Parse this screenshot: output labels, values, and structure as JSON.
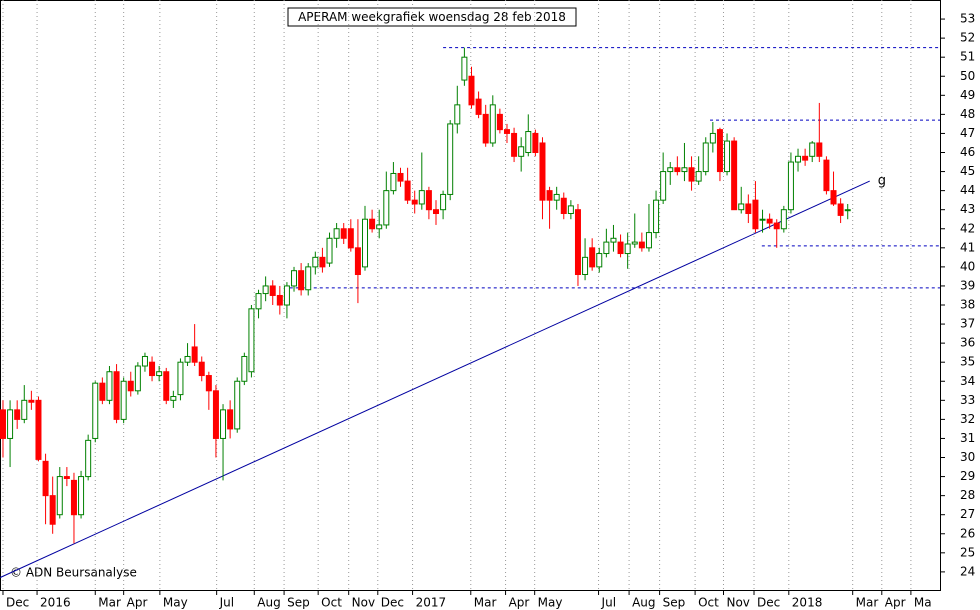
{
  "chart_data": {
    "type": "candlestick",
    "title": "APERAM weekgrafiek woensdag 28 feb 2018",
    "source": "© ADN Beursanalyse",
    "up_color": "#008000",
    "down_color": "#ff0000",
    "open": [
      32.5,
      31,
      32.5,
      32,
      33,
      33,
      29.8,
      28,
      27,
      29,
      28.8,
      27,
      29,
      31,
      33.9,
      33,
      34.5,
      32,
      34,
      33.5,
      34.8,
      35,
      34.3,
      34.5,
      33,
      33.3,
      35,
      35.8,
      35,
      34.3,
      33.5,
      31,
      32.5,
      31.5,
      34,
      34.5,
      37.8,
      38.6,
      39,
      38.5,
      38,
      39,
      39.8,
      38.8,
      40,
      40.5,
      40.2,
      41.5,
      42,
      42,
      41,
      40,
      42.5,
      42,
      42.2,
      44,
      44.9,
      44.5,
      43.5,
      43.3,
      44,
      43,
      43,
      43.8,
      47.5,
      49.8,
      50,
      48.8,
      48,
      46.5,
      48,
      47.2,
      47,
      45.8,
      46,
      47,
      46.5,
      44,
      43.5,
      43.6,
      42.8,
      43,
      39.6,
      41,
      40,
      40.7,
      41.3,
      41.3,
      40.7,
      41.2,
      41.3,
      41,
      41.8,
      43.5,
      45,
      45.2,
      45,
      45.2,
      44.5,
      45,
      46.5,
      47.2,
      45,
      46.6,
      43,
      43.3,
      43.5,
      42.5,
      42.5,
      42.3,
      42,
      43,
      45.5,
      45.8,
      45.8,
      46.5,
      45.6,
      44,
      43.3,
      43
    ],
    "high": [
      33,
      33,
      33,
      33.8,
      33.5,
      33.2,
      30.2,
      29,
      29.5,
      29.5,
      29.2,
      29.3,
      31.2,
      34,
      34.2,
      34.8,
      34.9,
      34.2,
      34.5,
      35,
      35.5,
      35.3,
      34.8,
      34.7,
      33.5,
      35.2,
      36,
      37,
      35.3,
      34.5,
      33.8,
      32.8,
      33,
      34.2,
      35.5,
      38,
      38.8,
      39.5,
      39.3,
      39,
      39.2,
      40,
      40.2,
      40.2,
      40.8,
      41,
      41.8,
      42.3,
      42.3,
      42.5,
      42.5,
      43.2,
      43,
      43,
      45,
      45.5,
      45.2,
      45.2,
      44,
      46,
      44.2,
      43.5,
      44,
      47.7,
      49.5,
      51.5,
      50.5,
      49.2,
      48.5,
      49,
      48.3,
      47.5,
      47.3,
      46.8,
      48,
      47.2,
      46.8,
      44.2,
      44.2,
      43.9,
      43.5,
      43.3,
      41.5,
      41.5,
      41,
      42,
      42.2,
      41.7,
      41.8,
      42.8,
      41.8,
      43.3,
      44,
      46,
      45.5,
      45.8,
      46.5,
      45.8,
      45.8,
      46.8,
      47.6,
      47.3,
      47,
      46.8,
      44.2,
      43.8,
      44.5,
      43,
      42.8,
      42.5,
      43.2,
      46,
      46.2,
      46.2,
      46.6,
      48.6,
      45.8,
      45,
      43.6,
      43.3
    ],
    "low": [
      30,
      29.5,
      31.5,
      31.8,
      32.5,
      29.8,
      26.5,
      26,
      26.8,
      28.5,
      25.5,
      26.8,
      28.8,
      30.8,
      32.8,
      32.8,
      31.8,
      31.8,
      33.2,
      33.3,
      34.5,
      34,
      34,
      32.8,
      32.6,
      33,
      34.8,
      34.8,
      34,
      32.5,
      30,
      28.8,
      31,
      31.3,
      33.8,
      34.2,
      37.3,
      38.2,
      38,
      37.5,
      37.3,
      38.7,
      38.5,
      38.5,
      39.6,
      39.7,
      40,
      41,
      41.2,
      40.8,
      38.1,
      39.8,
      41.8,
      41.5,
      42,
      43.8,
      44.2,
      43.3,
      42.8,
      43,
      42.5,
      42.2,
      42.5,
      43.5,
      47,
      49.5,
      48.3,
      47.8,
      46.3,
      46.3,
      47,
      46.5,
      45.5,
      45,
      45.8,
      45.8,
      42.5,
      42,
      43,
      42.5,
      42.5,
      39,
      39.3,
      39.8,
      39.7,
      40.5,
      40.8,
      40.5,
      39.9,
      41,
      40.8,
      40.8,
      41.5,
      43.3,
      44.3,
      44.8,
      44.5,
      44,
      44.3,
      44.8,
      46,
      44.5,
      44.8,
      43,
      42.8,
      42.3,
      41.8,
      41.8,
      42,
      41,
      41.8,
      42.8,
      45,
      45.3,
      45.5,
      45.5,
      43.8,
      43.2,
      42.3,
      42.5
    ],
    "close": [
      31,
      32.5,
      32,
      33,
      32.9,
      29.9,
      28,
      26.5,
      29,
      28.9,
      27,
      29,
      30.9,
      33.9,
      33,
      34.5,
      32,
      34,
      33.5,
      34.8,
      35.3,
      34.3,
      34.5,
      33,
      33.2,
      35,
      35.3,
      35,
      34.3,
      33.5,
      31,
      32.5,
      31.5,
      34,
      35.3,
      37.8,
      38.6,
      39,
      38.5,
      38,
      39,
      39.8,
      38.8,
      40,
      40.5,
      40,
      41.5,
      42,
      41.5,
      41,
      39.6,
      42.5,
      42,
      42.2,
      44,
      44.9,
      44.5,
      43.5,
      43.3,
      44,
      43,
      42.8,
      43.8,
      47.5,
      48.5,
      51,
      48.5,
      48,
      46.5,
      48.5,
      47.2,
      47,
      45.8,
      46.3,
      47.1,
      46,
      43.5,
      43.5,
      43.8,
      42.8,
      43.2,
      39.6,
      40.5,
      40,
      40.7,
      41.3,
      41.5,
      40.7,
      41.2,
      41.3,
      41,
      41.8,
      43.5,
      45,
      45.2,
      45,
      45.2,
      44.5,
      45,
      46.5,
      47,
      45,
      46.6,
      43,
      43.3,
      42.8,
      42,
      42.5,
      42.3,
      42,
      43,
      45.5,
      45.8,
      45.6,
      46.5,
      45.8,
      44,
      43.3,
      42.7,
      43
    ],
    "xlim": [
      -0.42,
      132
    ],
    "xticks": [
      {
        "value": 0,
        "label": "Dec"
      },
      {
        "value": 4.8,
        "label": "2016"
      },
      {
        "value": 13,
        "label": "Mar"
      },
      {
        "value": 17,
        "label": "Apr"
      },
      {
        "value": 22.1,
        "label": "May"
      },
      {
        "value": 30.1,
        "label": "Jul"
      },
      {
        "value": 35.4,
        "label": "Aug"
      },
      {
        "value": 39.6,
        "label": "Sep"
      },
      {
        "value": 44.4,
        "label": "Oct"
      },
      {
        "value": 48.7,
        "label": "Nov"
      },
      {
        "value": 52.8,
        "label": "Dec"
      },
      {
        "value": 57.7,
        "label": "2017"
      },
      {
        "value": 65.9,
        "label": "Mar"
      },
      {
        "value": 70.8,
        "label": "Apr"
      },
      {
        "value": 74.9,
        "label": "May"
      },
      {
        "value": 83.9,
        "label": "Jul"
      },
      {
        "value": 88.2,
        "label": "Aug"
      },
      {
        "value": 92.5,
        "label": "Sep"
      },
      {
        "value": 97.5,
        "label": "Oct"
      },
      {
        "value": 101.5,
        "label": "Nov"
      },
      {
        "value": 105.8,
        "label": "Dec"
      },
      {
        "value": 110.7,
        "label": "2018"
      },
      {
        "value": 119.7,
        "label": "Mar"
      },
      {
        "value": 123.8,
        "label": "Apr"
      },
      {
        "value": 127.9,
        "label": "Ma"
      }
    ],
    "ylim": [
      23.05,
      54
    ],
    "yticks": [
      24,
      25,
      26,
      27,
      28,
      29,
      30,
      31,
      32,
      33,
      34,
      35,
      36,
      37,
      38,
      39,
      40,
      41,
      42,
      43,
      44,
      45,
      46,
      47,
      48,
      49,
      50,
      51,
      52,
      53
    ],
    "grid": true,
    "trendline": {
      "label": "g",
      "x": [
        -0.42,
        122.1
      ],
      "y": [
        23.7,
        44.5
      ],
      "color": "#0000a0"
    },
    "hlines": [
      {
        "y": 51.5,
        "x_start": 62
      },
      {
        "y": 47.7,
        "x_start": 99.6
      },
      {
        "y": 41.1,
        "x_start": 106.9
      },
      {
        "y": 38.9,
        "x_start": 40.4
      }
    ],
    "hline_color": "#0000c0"
  }
}
